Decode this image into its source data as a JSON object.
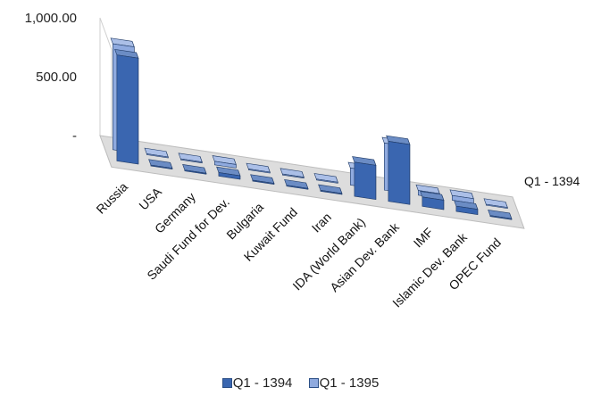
{
  "chart_data": {
    "type": "bar",
    "categories": [
      "Russia",
      "USA",
      "Germany",
      "Saudi Fund for Dev.",
      "Bulgaria",
      "Kuwait Fund",
      "Iran",
      "IDA (World Bank)",
      "Asian Dev. Bank",
      "IMF",
      "Islamic Dev. Bank",
      "OPEC Fund"
    ],
    "series": [
      {
        "name": "Q1 - 1394",
        "values": [
          900,
          0,
          0,
          30,
          0,
          0,
          0,
          290,
          510,
          80,
          45,
          0
        ],
        "color": "#3a66b0"
      },
      {
        "name": "Q1 - 1395",
        "values": [
          900,
          0,
          0,
          30,
          0,
          0,
          0,
          145,
          400,
          40,
          40,
          0
        ],
        "color": "#8faadf"
      }
    ],
    "yticks": [
      "1,000.00",
      "500.00",
      "-"
    ],
    "depth_label": "Q1 - 1394",
    "ylim": [
      0,
      1000
    ],
    "legend_position": "bottom"
  }
}
